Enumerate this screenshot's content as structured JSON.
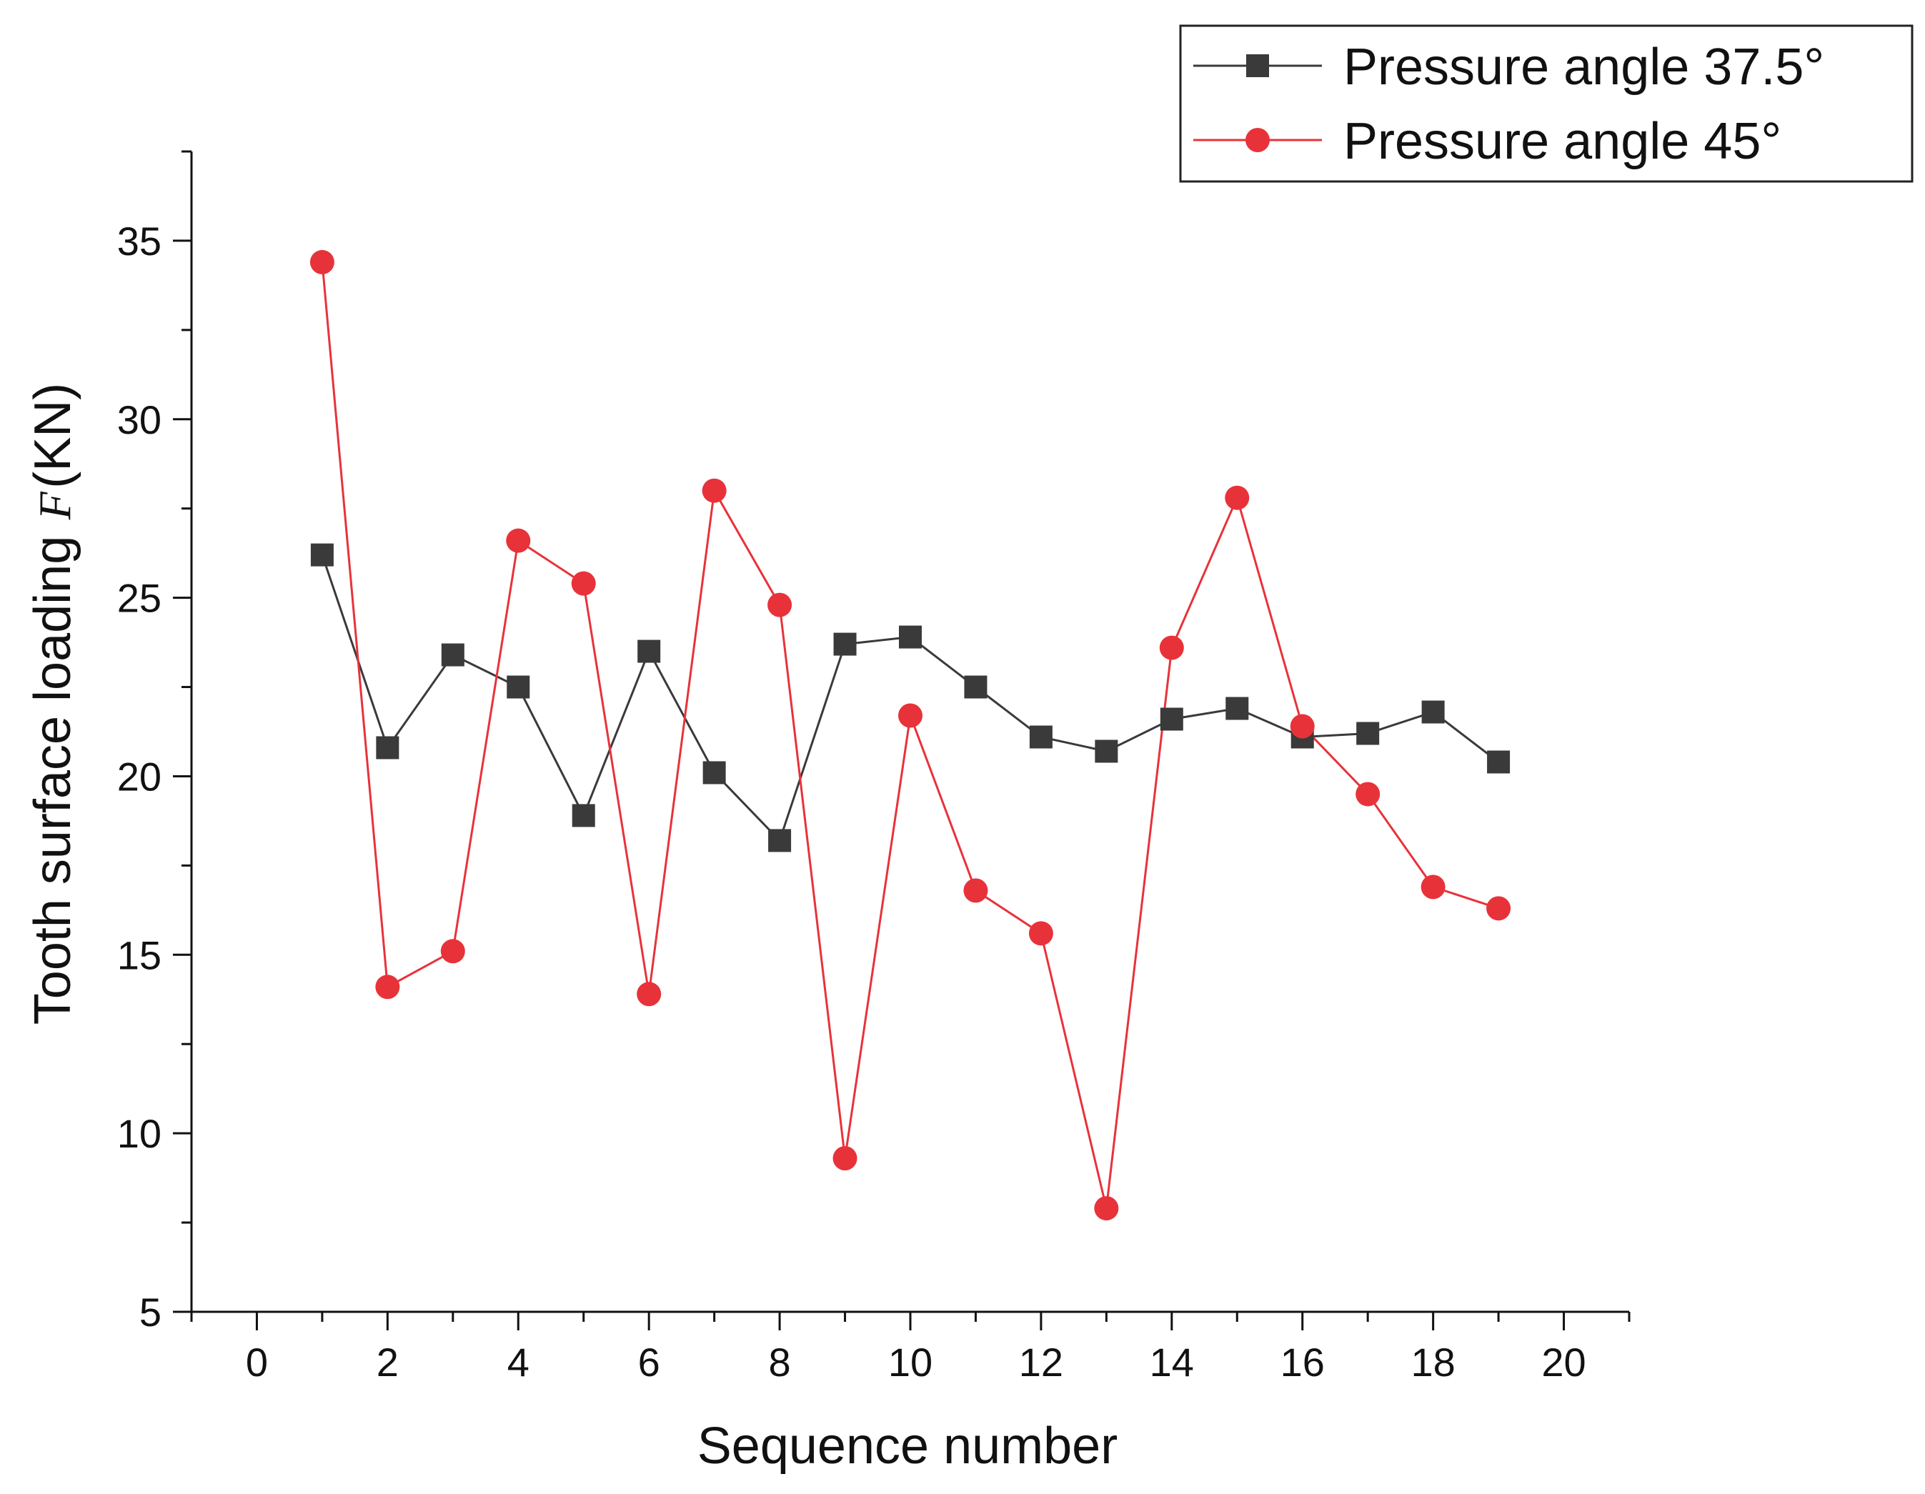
{
  "chart_data": {
    "type": "line",
    "title": "",
    "xlabel": "Sequence number",
    "ylabel": "Tooth surface loading",
    "ylabel_var": "F",
    "ylabel_unit": "(KN)",
    "xlim": [
      -1,
      21
    ],
    "ylim": [
      5,
      37.5
    ],
    "xticks": [
      0,
      2,
      4,
      6,
      8,
      10,
      12,
      14,
      16,
      18,
      20
    ],
    "yticks": [
      5,
      10,
      15,
      20,
      25,
      30,
      35
    ],
    "grid": false,
    "legend_position": "top-right",
    "x": [
      1,
      2,
      3,
      4,
      5,
      6,
      7,
      8,
      9,
      10,
      11,
      12,
      13,
      14,
      15,
      16,
      17,
      18,
      19
    ],
    "series": [
      {
        "name": "Pressure angle 37.5°",
        "color": "#3a3a3a",
        "marker": "square",
        "values": [
          26.2,
          20.8,
          23.4,
          22.5,
          18.9,
          23.5,
          20.1,
          18.2,
          23.7,
          23.9,
          22.5,
          21.1,
          20.7,
          21.6,
          21.9,
          21.1,
          21.2,
          21.8,
          20.4
        ]
      },
      {
        "name": "Pressure angle 45°",
        "color": "#e8323a",
        "marker": "circle",
        "values": [
          34.4,
          14.1,
          15.1,
          26.6,
          25.4,
          13.9,
          28.0,
          24.8,
          9.3,
          21.7,
          16.8,
          15.6,
          7.9,
          23.6,
          27.8,
          21.4,
          19.5,
          16.9,
          16.3
        ]
      }
    ]
  }
}
